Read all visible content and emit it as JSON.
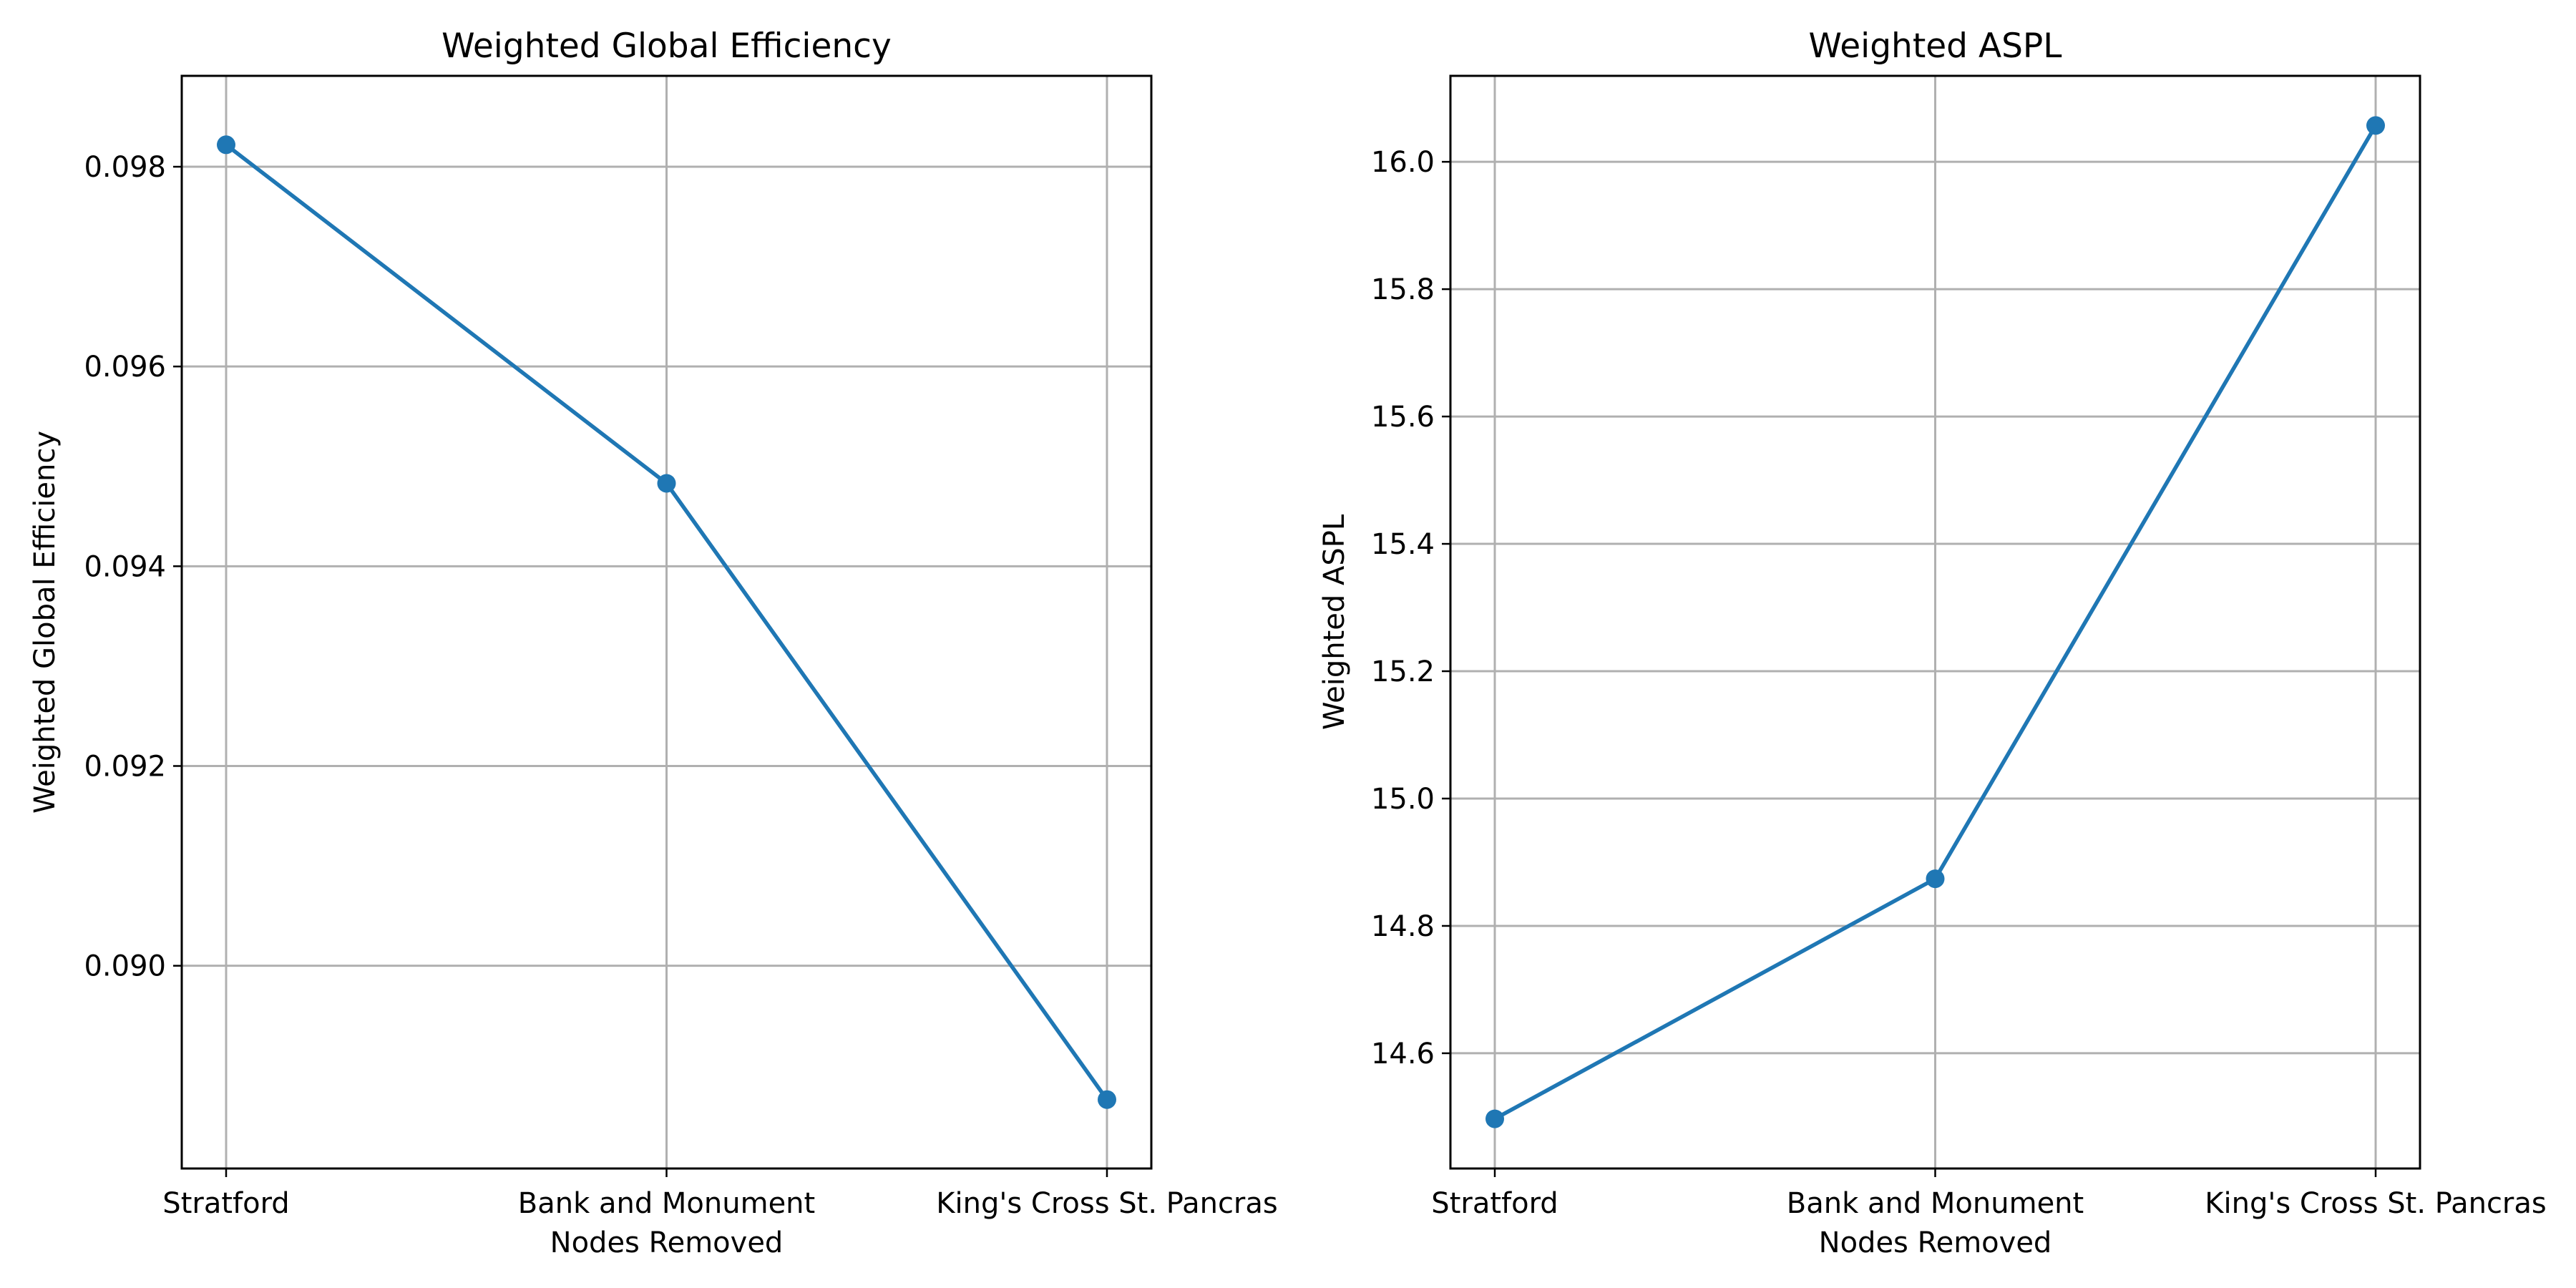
{
  "figure": {
    "line_color": "#1f77b4",
    "grid_color": "#b0b0b0"
  },
  "chart_data": [
    {
      "type": "line",
      "title": "Weighted Global Efficiency",
      "xlabel": "Nodes Removed",
      "ylabel": "Weighted Global Efficiency",
      "categories": [
        "Stratford",
        "Bank and Monument",
        "King's Cross St. Pancras"
      ],
      "series": [
        {
          "values": [
            0.09822,
            0.09483,
            0.08866
          ]
        }
      ],
      "ylim": [
        0.08797,
        0.09891
      ],
      "yticks": [
        0.09,
        0.092,
        0.094,
        0.096,
        0.098
      ],
      "ytick_labels": [
        "0.090",
        "0.092",
        "0.094",
        "0.096",
        "0.098"
      ],
      "grid": true,
      "marker": "circle"
    },
    {
      "type": "line",
      "title": "Weighted ASPL",
      "xlabel": "Nodes Removed",
      "ylabel": "Weighted ASPL",
      "categories": [
        "Stratford",
        "Bank and Monument",
        "King's Cross St. Pancras"
      ],
      "series": [
        {
          "values": [
            14.497,
            14.874,
            16.057
          ]
        }
      ],
      "ylim": [
        14.419,
        16.135
      ],
      "yticks": [
        14.6,
        14.8,
        15.0,
        15.2,
        15.4,
        15.6,
        15.8,
        16.0
      ],
      "ytick_labels": [
        "14.6",
        "14.8",
        "15.0",
        "15.2",
        "15.4",
        "15.6",
        "15.8",
        "16.0"
      ],
      "grid": true,
      "marker": "circle"
    }
  ]
}
